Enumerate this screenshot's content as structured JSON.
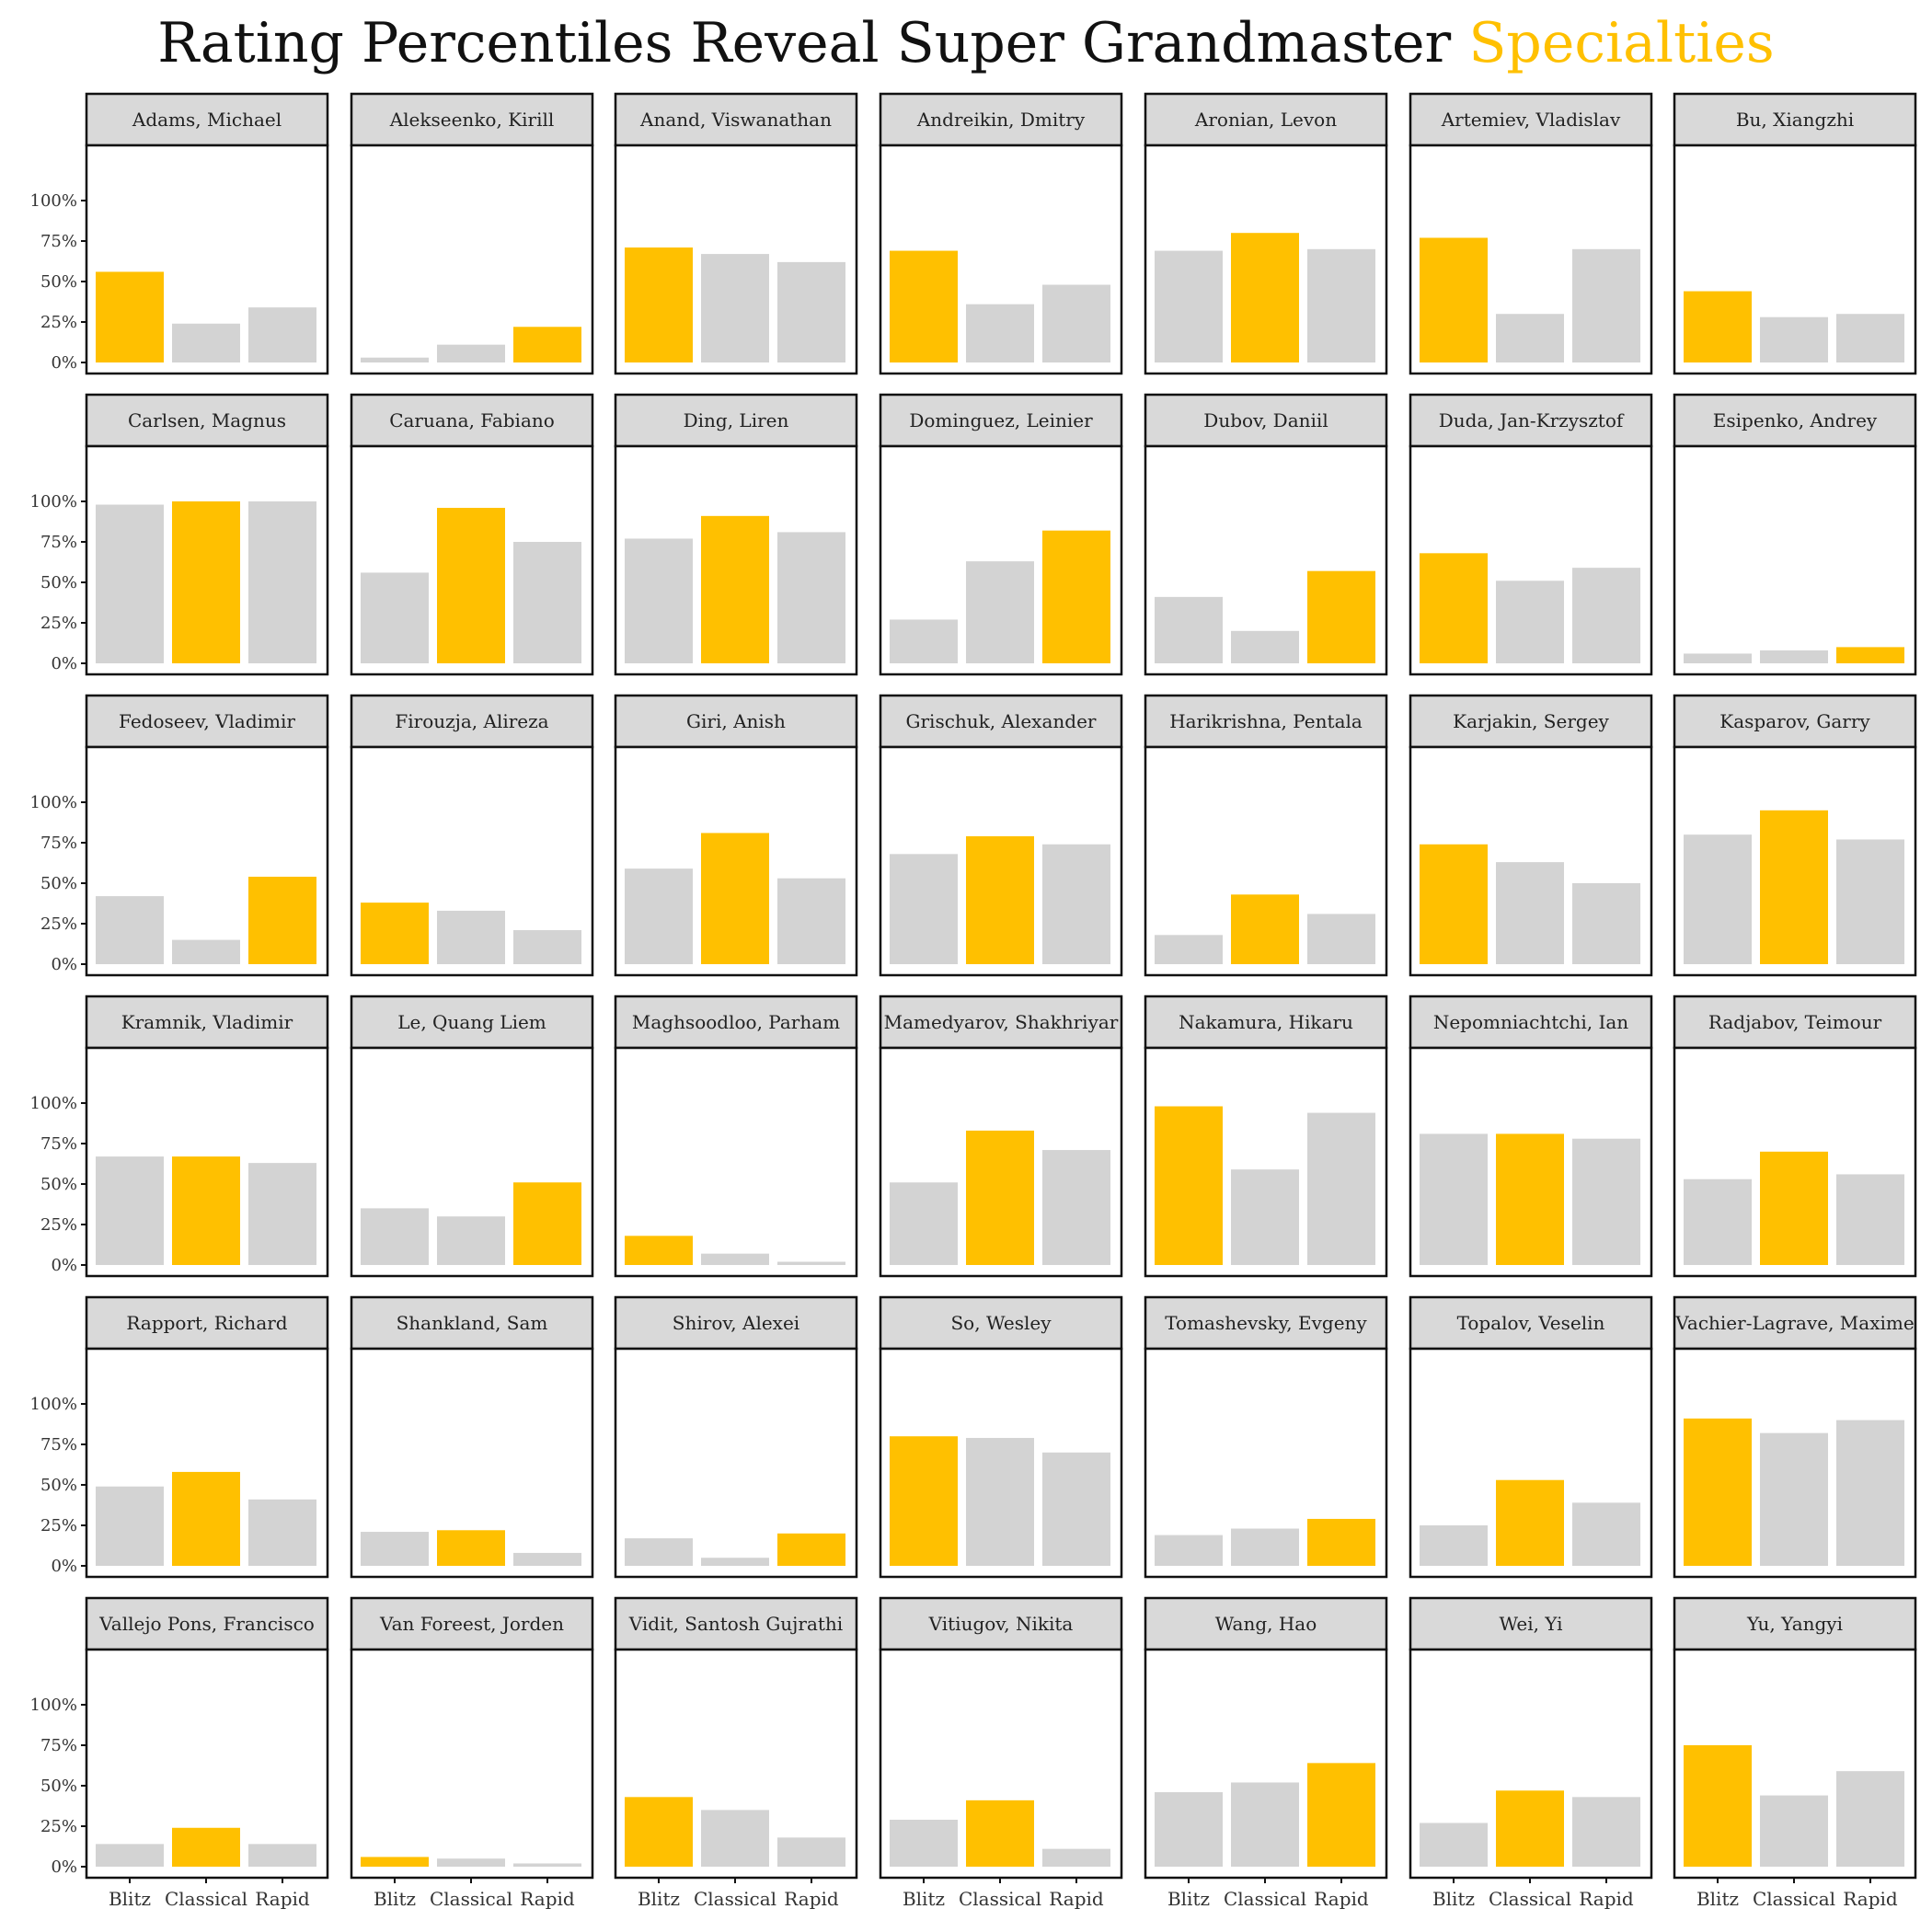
{
  "title": {
    "main": "Rating Percentiles Reveal Super Grandmaster",
    "highlight": "Specialties"
  },
  "colors": {
    "highlight": "#ffc000",
    "other": "#d3d3d3",
    "strip": "#d9d9d9",
    "border": "#111111"
  },
  "chart_data": {
    "type": "bar",
    "facet": "small-multiples",
    "categories": [
      "Blitz",
      "Classical",
      "Rapid"
    ],
    "y_ticks": [
      "0%",
      "25%",
      "50%",
      "75%",
      "100%"
    ],
    "ylim": [
      0,
      100
    ],
    "panels": [
      {
        "name": "Adams, Michael",
        "values": [
          56,
          24,
          34
        ],
        "highlight": 0
      },
      {
        "name": "Alekseenko, Kirill",
        "values": [
          3,
          11,
          22
        ],
        "highlight": 2
      },
      {
        "name": "Anand, Viswanathan",
        "values": [
          71,
          67,
          62
        ],
        "highlight": 0
      },
      {
        "name": "Andreikin, Dmitry",
        "values": [
          69,
          36,
          48
        ],
        "highlight": 0
      },
      {
        "name": "Aronian, Levon",
        "values": [
          69,
          80,
          70
        ],
        "highlight": 1
      },
      {
        "name": "Artemiev, Vladislav",
        "values": [
          77,
          30,
          70
        ],
        "highlight": 0
      },
      {
        "name": "Bu, Xiangzhi",
        "values": [
          44,
          28,
          30
        ],
        "highlight": 0
      },
      {
        "name": "Carlsen, Magnus",
        "values": [
          98,
          100,
          100
        ],
        "highlight": 1
      },
      {
        "name": "Caruana, Fabiano",
        "values": [
          56,
          96,
          75
        ],
        "highlight": 1
      },
      {
        "name": "Ding, Liren",
        "values": [
          77,
          91,
          81
        ],
        "highlight": 1
      },
      {
        "name": "Dominguez, Leinier",
        "values": [
          27,
          63,
          82
        ],
        "highlight": 2
      },
      {
        "name": "Dubov, Daniil",
        "values": [
          41,
          20,
          57
        ],
        "highlight": 2
      },
      {
        "name": "Duda, Jan-Krzysztof",
        "values": [
          68,
          51,
          59
        ],
        "highlight": 0
      },
      {
        "name": "Esipenko, Andrey",
        "values": [
          6,
          8,
          10
        ],
        "highlight": 2
      },
      {
        "name": "Fedoseev, Vladimir",
        "values": [
          42,
          15,
          54
        ],
        "highlight": 2
      },
      {
        "name": "Firouzja, Alireza",
        "values": [
          38,
          33,
          21
        ],
        "highlight": 0
      },
      {
        "name": "Giri, Anish",
        "values": [
          59,
          81,
          53
        ],
        "highlight": 1
      },
      {
        "name": "Grischuk, Alexander",
        "values": [
          68,
          79,
          74
        ],
        "highlight": 1
      },
      {
        "name": "Harikrishna, Pentala",
        "values": [
          18,
          43,
          31
        ],
        "highlight": 1
      },
      {
        "name": "Karjakin, Sergey",
        "values": [
          74,
          63,
          50
        ],
        "highlight": 0
      },
      {
        "name": "Kasparov, Garry",
        "values": [
          80,
          95,
          77
        ],
        "highlight": 1
      },
      {
        "name": "Kramnik, Vladimir",
        "values": [
          67,
          67,
          63
        ],
        "highlight": 1
      },
      {
        "name": "Le, Quang Liem",
        "values": [
          35,
          30,
          51
        ],
        "highlight": 2
      },
      {
        "name": "Maghsoodloo, Parham",
        "values": [
          18,
          7,
          2
        ],
        "highlight": 0
      },
      {
        "name": "Mamedyarov, Shakhriyar",
        "values": [
          51,
          83,
          71
        ],
        "highlight": 1
      },
      {
        "name": "Nakamura, Hikaru",
        "values": [
          98,
          59,
          94
        ],
        "highlight": 0
      },
      {
        "name": "Nepomniachtchi, Ian",
        "values": [
          81,
          81,
          78
        ],
        "highlight": 1
      },
      {
        "name": "Radjabov, Teimour",
        "values": [
          53,
          70,
          56
        ],
        "highlight": 1
      },
      {
        "name": "Rapport, Richard",
        "values": [
          49,
          58,
          41
        ],
        "highlight": 1
      },
      {
        "name": "Shankland, Sam",
        "values": [
          21,
          22,
          8
        ],
        "highlight": 1
      },
      {
        "name": "Shirov, Alexei",
        "values": [
          17,
          5,
          20
        ],
        "highlight": 2
      },
      {
        "name": "So, Wesley",
        "values": [
          80,
          79,
          70
        ],
        "highlight": 0
      },
      {
        "name": "Tomashevsky, Evgeny",
        "values": [
          19,
          23,
          29
        ],
        "highlight": 2
      },
      {
        "name": "Topalov, Veselin",
        "values": [
          25,
          53,
          39
        ],
        "highlight": 1
      },
      {
        "name": "Vachier-Lagrave, Maxime",
        "values": [
          91,
          82,
          90
        ],
        "highlight": 0
      },
      {
        "name": "Vallejo Pons, Francisco",
        "values": [
          14,
          24,
          14
        ],
        "highlight": 1
      },
      {
        "name": "Van Foreest, Jorden",
        "values": [
          6,
          5,
          2
        ],
        "highlight": 0
      },
      {
        "name": "Vidit, Santosh Gujrathi",
        "values": [
          43,
          35,
          18
        ],
        "highlight": 0
      },
      {
        "name": "Vitiugov, Nikita",
        "values": [
          29,
          41,
          11
        ],
        "highlight": 1
      },
      {
        "name": "Wang, Hao",
        "values": [
          46,
          52,
          64
        ],
        "highlight": 2
      },
      {
        "name": "Wei, Yi",
        "values": [
          27,
          47,
          43
        ],
        "highlight": 1
      },
      {
        "name": "Yu, Yangyi",
        "values": [
          75,
          44,
          59
        ],
        "highlight": 0
      }
    ]
  }
}
